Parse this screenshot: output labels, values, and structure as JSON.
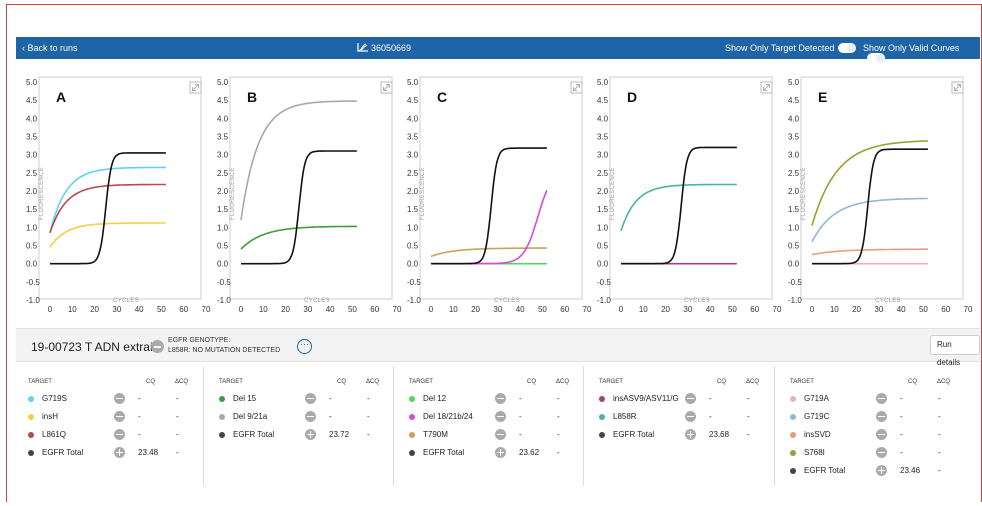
{
  "header": {
    "back_label": "Back to runs",
    "run_id": "36050669",
    "toggle_target_label": "Show Only Target Detected",
    "toggle_valid_label": "Show Only Valid Curves"
  },
  "axis": {
    "y_title": "FLUORESCENCE",
    "x_title": "CYCLES",
    "y_ticks": [
      "5.0",
      "4.5",
      "4.0",
      "3.5",
      "3.0",
      "2.5",
      "2.0",
      "1.5",
      "1.0",
      "0.5",
      "0.0",
      "-0.5",
      "-1.0"
    ],
    "x_ticks": [
      "0",
      "10",
      "20",
      "30",
      "40",
      "50",
      "60",
      "70"
    ],
    "xlim": [
      0,
      70
    ],
    "ylim": [
      -1.0,
      5.0
    ]
  },
  "charts": [
    {
      "label": "A",
      "curves": [
        {
          "color": "#5fd3ec",
          "type": "exp",
          "start": 0.85,
          "plateau": 2.65,
          "k": 0.14
        },
        {
          "color": "#b54a52",
          "type": "exp",
          "start": 0.85,
          "plateau": 2.18,
          "k": 0.14
        },
        {
          "color": "#f1d042",
          "type": "exp",
          "start": 0.45,
          "plateau": 1.12,
          "k": 0.14
        },
        {
          "color": "#111111",
          "type": "sig",
          "base": 0.0,
          "top": 3.05,
          "mid": 25,
          "s": 1.3
        }
      ]
    },
    {
      "label": "B",
      "curves": [
        {
          "color": "#a8a8a8",
          "type": "exp",
          "start": 1.2,
          "plateau": 4.48,
          "k": 0.13
        },
        {
          "color": "#3f9b3c",
          "type": "exp",
          "start": 0.4,
          "plateau": 1.03,
          "k": 0.1
        },
        {
          "color": "#111111",
          "type": "sig",
          "base": 0.0,
          "top": 3.1,
          "mid": 26,
          "s": 1.3
        }
      ]
    },
    {
      "label": "C",
      "curves": [
        {
          "color": "#caa05a",
          "type": "exp",
          "start": 0.2,
          "plateau": 0.43,
          "k": 0.1
        },
        {
          "color": "#55d35f",
          "type": "flat",
          "value": 0.0
        },
        {
          "color": "#d84bd4",
          "type": "sig",
          "base": 0.0,
          "top": 2.6,
          "mid": 48,
          "s": 3.2
        },
        {
          "color": "#111111",
          "type": "sig",
          "base": 0.0,
          "top": 3.18,
          "mid": 27,
          "s": 1.3
        }
      ]
    },
    {
      "label": "D",
      "curves": [
        {
          "color": "#4ab3a6",
          "type": "exp",
          "start": 0.9,
          "plateau": 2.18,
          "k": 0.15
        },
        {
          "color": "#a5417d",
          "type": "flat",
          "value": 0.0
        },
        {
          "color": "#111111",
          "type": "sig",
          "base": 0.0,
          "top": 3.2,
          "mid": 27,
          "s": 1.3
        }
      ]
    },
    {
      "label": "E",
      "curves": [
        {
          "color": "#ebb1b7",
          "type": "flat",
          "value": 0.0
        },
        {
          "color": "#94b6d8",
          "type": "exp",
          "start": 0.6,
          "plateau": 1.8,
          "k": 0.1
        },
        {
          "color": "#e79b7f",
          "type": "exp",
          "start": 0.25,
          "plateau": 0.4,
          "k": 0.08
        },
        {
          "color": "#9aa033",
          "type": "exp",
          "start": 1.05,
          "plateau": 3.4,
          "k": 0.09
        },
        {
          "color": "#111111",
          "type": "sig",
          "base": 0.0,
          "top": 3.15,
          "mid": 25,
          "s": 1.3
        }
      ]
    }
  ],
  "sample": {
    "name": "19-00723 T ADN extrait",
    "genotype_title": "EGFR GENOTYPE:",
    "genotype_value": "L858R: NO MUTATION DETECTED",
    "more_label": "···",
    "run_details_label": "Run details"
  },
  "table_headers": {
    "target": "TARGET",
    "cq": "CQ",
    "dcq": "ΔCQ"
  },
  "tables": [
    {
      "rows": [
        {
          "color": "#5fd3ec",
          "name": "G719S",
          "ctl": "minus",
          "cq": "-",
          "dcq": "-"
        },
        {
          "color": "#f1d042",
          "name": "insH",
          "ctl": "minus",
          "cq": "-",
          "dcq": "-"
        },
        {
          "color": "#b54a52",
          "name": "L861Q",
          "ctl": "minus",
          "cq": "-",
          "dcq": "-"
        },
        {
          "color": "#444444",
          "name": "EGFR Total",
          "ctl": "plus",
          "cq": "23.48",
          "dcq": "-"
        }
      ]
    },
    {
      "rows": [
        {
          "color": "#3f9b3c",
          "name": "Del 15",
          "ctl": "minus",
          "cq": "-",
          "dcq": "-"
        },
        {
          "color": "#a8a8a8",
          "name": "Del 9/21a",
          "ctl": "minus",
          "cq": "-",
          "dcq": "-"
        },
        {
          "color": "#444444",
          "name": "EGFR Total",
          "ctl": "plus",
          "cq": "23.72",
          "dcq": "-"
        }
      ]
    },
    {
      "rows": [
        {
          "color": "#55d35f",
          "name": "Del 12",
          "ctl": "minus",
          "cq": "-",
          "dcq": "-"
        },
        {
          "color": "#d84bd4",
          "name": "Del 18/21b/24",
          "ctl": "minus",
          "cq": "-",
          "dcq": "-"
        },
        {
          "color": "#caa05a",
          "name": "T790M",
          "ctl": "minus",
          "cq": "-",
          "dcq": "-"
        },
        {
          "color": "#444444",
          "name": "EGFR Total",
          "ctl": "plus",
          "cq": "23.62",
          "dcq": "-"
        }
      ]
    },
    {
      "rows": [
        {
          "color": "#a5417d",
          "name": "insASV9/ASV11/G",
          "ctl": "minus",
          "cq": "-",
          "dcq": "-"
        },
        {
          "color": "#4ab3a6",
          "name": "L858R",
          "ctl": "minus",
          "cq": "-",
          "dcq": "-"
        },
        {
          "color": "#444444",
          "name": "EGFR Total",
          "ctl": "plus",
          "cq": "23.68",
          "dcq": "-"
        }
      ]
    },
    {
      "rows": [
        {
          "color": "#ebb1b7",
          "name": "G719A",
          "ctl": "minus",
          "cq": "-",
          "dcq": "-"
        },
        {
          "color": "#94b6d8",
          "name": "G719C",
          "ctl": "minus",
          "cq": "-",
          "dcq": "-"
        },
        {
          "color": "#e79b7f",
          "name": "insSVD",
          "ctl": "minus",
          "cq": "-",
          "dcq": "-"
        },
        {
          "color": "#9aa033",
          "name": "S768I",
          "ctl": "minus",
          "cq": "-",
          "dcq": "-"
        },
        {
          "color": "#444444",
          "name": "EGFR Total",
          "ctl": "plus",
          "cq": "23.46",
          "dcq": "-"
        }
      ]
    }
  ]
}
